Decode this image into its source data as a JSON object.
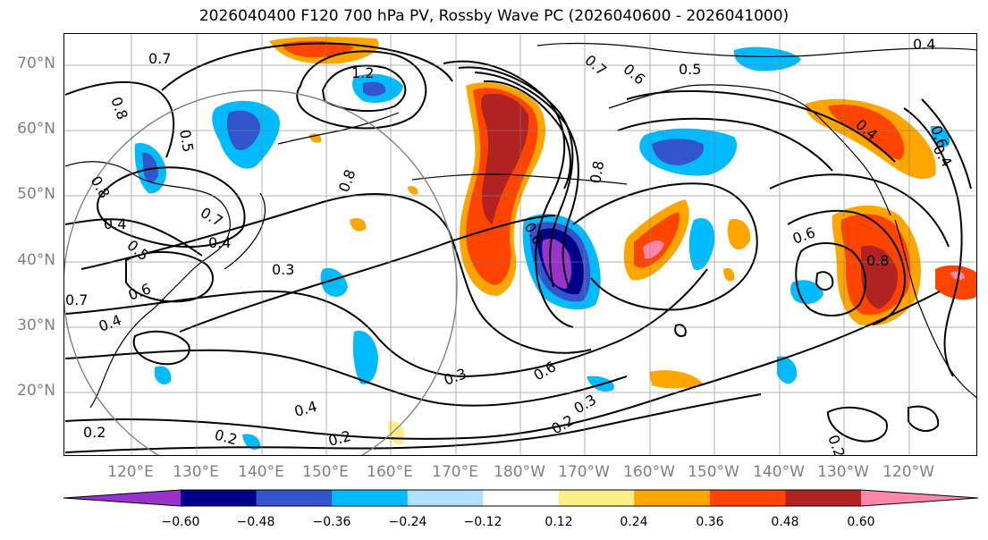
{
  "title": "2026040400 F120 700 hPa PV, Rossby Wave PC (2026040600 - 2026041000)",
  "lat_labels": [
    "70°N",
    "60°N",
    "50°N",
    "40°N",
    "30°N",
    "20°N"
  ],
  "lon_labels": [
    "120°E",
    "130°E",
    "140°E",
    "150°E",
    "160°E",
    "170°E",
    "180°W",
    "170°W",
    "160°W",
    "150°W",
    "140°W",
    "130°W",
    "120°W"
  ],
  "colorbar": {
    "ticks": [
      "−0.60",
      "−0.48",
      "−0.36",
      "−0.24",
      "−0.12",
      "0.12",
      "0.24",
      "0.36",
      "0.48",
      "0.60"
    ],
    "colors": [
      "#9933cc",
      "#000088",
      "#3355cc",
      "#00bbff",
      "#b0e0ff",
      "#ffffff",
      "#ffee88",
      "#ffa500",
      "#ff4400",
      "#b22222",
      "#ff88aa"
    ]
  },
  "contour_labels": [
    "0.7",
    "1.2",
    "0.7",
    "0.6",
    "0.5",
    "0.4",
    "0.8",
    "0.5",
    "0.8",
    "0.4",
    "0.7",
    "0.4",
    "0.3",
    "0.5",
    "0.6",
    "0.8",
    "0.8",
    "0.7",
    "0.6",
    "0.4",
    "0.3",
    "0.6",
    "0.3",
    "0.2",
    "0.4",
    "0.2",
    "0.2",
    "0.2",
    "0.6",
    "0.8",
    "0.4",
    "0.6",
    "0.4",
    "0.2"
  ]
}
